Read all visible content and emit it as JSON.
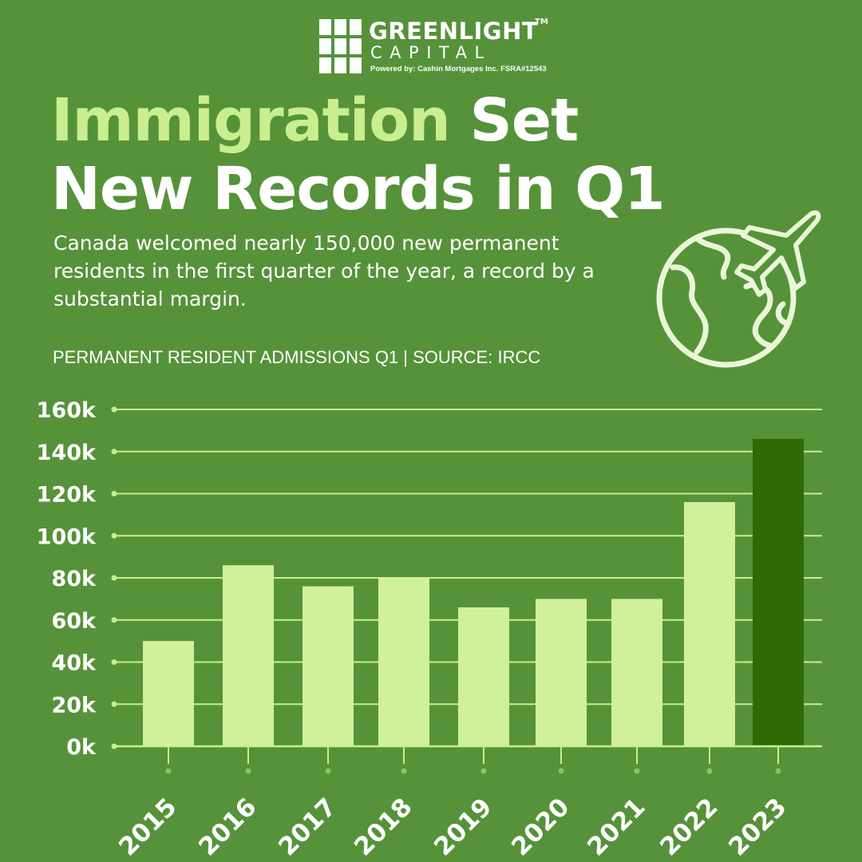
{
  "brand": {
    "name_top": "GREENLIGHT",
    "trademark": "TM",
    "name_bottom": "CAPITAL",
    "powered_by": "Powered by:  Cashin Mortgages Inc.  FSRA#12543"
  },
  "headline": {
    "accent": "Immigration",
    "rest_line1": "Set",
    "line2": "New Records in Q1"
  },
  "subtitle": "Canada welcomed nearly 150,000 new permanent residents in the first quarter of the year, a record by a substantial margin.",
  "source_line": "PERMANENT RESIDENT ADMISSIONS Q1  |  SOURCE: IRCC",
  "icons": {
    "globe": "globe-airplane-icon"
  },
  "colors": {
    "background": "#56923a",
    "accent_text": "#c9ee8f",
    "bar": "#d0f09c",
    "bar_highlight": "#2e6a04",
    "grid": "#c9ee8f"
  },
  "chart_data": {
    "type": "bar",
    "title": "",
    "xlabel": "",
    "ylabel": "",
    "categories": [
      "2015",
      "2016",
      "2017",
      "2018",
      "2019",
      "2020",
      "2021",
      "2022",
      "2023"
    ],
    "values": [
      50000,
      86000,
      76000,
      80000,
      66000,
      70000,
      70000,
      116000,
      146000
    ],
    "highlight": "2023",
    "ylim": [
      0,
      160000
    ],
    "yticks": [
      0,
      20000,
      40000,
      60000,
      80000,
      100000,
      120000,
      140000,
      160000
    ],
    "ytick_labels": [
      "0k",
      "20k",
      "40k",
      "60k",
      "80k",
      "100k",
      "120k",
      "140k",
      "160k"
    ],
    "grid": true,
    "legend": "none"
  }
}
